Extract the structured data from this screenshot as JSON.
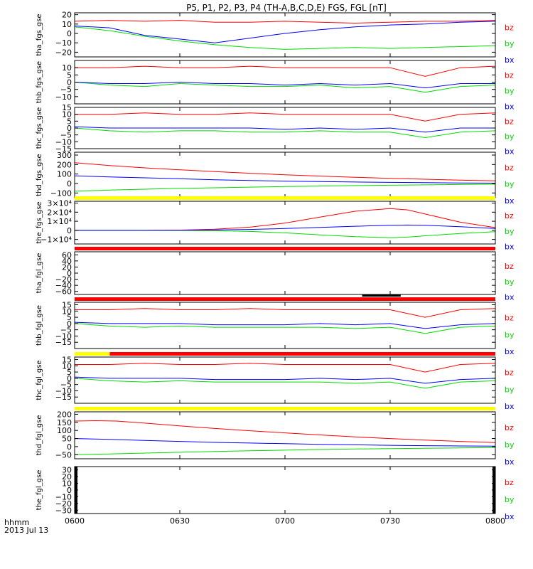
{
  "chart_data": {
    "type": "line",
    "title": "P5, P1, P2, P3, P4 (TH-A,B,C,D,E) FGS, FGL [nT]",
    "x_tick_labels": [
      "0600",
      "0630",
      "0700",
      "0730",
      "0800"
    ],
    "x_label_line1": "hhmm",
    "x_label_line2": "2013 Jul 13",
    "x_range": [
      "06:00",
      "08:00"
    ],
    "series_colors": {
      "bz": "#ff0000",
      "by": "#00dd00",
      "bx": "#0000ff"
    },
    "legend": [
      "bz",
      "by",
      "bx"
    ],
    "panels": [
      {
        "ylabel": "tha_fgs_gse",
        "ylim": [
          -25,
          22
        ],
        "yticks": [
          "20",
          "10",
          "0",
          "−10",
          "−20"
        ],
        "bar": null,
        "series": [
          {
            "name": "bz",
            "x": [
              0,
              10,
              20,
              30,
              40,
              50,
              60,
              70,
              80,
              90,
              100,
              110,
              120
            ],
            "y": [
              13,
              14,
              13,
              14,
              12,
              12,
              13,
              12,
              11,
              12,
              13,
              13,
              14
            ]
          },
          {
            "name": "by",
            "x": [
              0,
              10,
              20,
              30,
              40,
              50,
              60,
              70,
              80,
              90,
              100,
              110,
              120
            ],
            "y": [
              7,
              3,
              -3,
              -8,
              -12,
              -15,
              -17,
              -16,
              -15,
              -16,
              -15,
              -14,
              -13
            ]
          },
          {
            "name": "bx",
            "x": [
              0,
              10,
              20,
              30,
              40,
              50,
              60,
              70,
              80,
              90,
              100,
              110,
              120
            ],
            "y": [
              8,
              6,
              -2,
              -6,
              -10,
              -5,
              0,
              4,
              7,
              9,
              10,
              12,
              13
            ]
          }
        ]
      },
      {
        "ylabel": "thb_fgs_gse",
        "ylim": [
          -15,
          15
        ],
        "yticks": [
          "10",
          "5",
          "0",
          "−5",
          "−10"
        ],
        "bar": null,
        "series": [
          {
            "name": "bz",
            "x": [
              0,
              10,
              20,
              30,
              40,
              50,
              60,
              70,
              80,
              90,
              100,
              110,
              120
            ],
            "y": [
              10,
              10,
              11,
              10,
              10,
              11,
              10,
              10,
              10,
              10,
              4,
              10,
              11
            ]
          },
          {
            "name": "by",
            "x": [
              0,
              10,
              20,
              30,
              40,
              50,
              60,
              70,
              80,
              90,
              100,
              110,
              120
            ],
            "y": [
              0,
              -2,
              -3,
              -1,
              -2,
              -3,
              -3,
              -2,
              -4,
              -3,
              -7,
              -3,
              -2
            ]
          },
          {
            "name": "bx",
            "x": [
              0,
              10,
              20,
              30,
              40,
              50,
              60,
              70,
              80,
              90,
              100,
              110,
              120
            ],
            "y": [
              0,
              -1,
              -1,
              0,
              -1,
              -1,
              -2,
              -1,
              -2,
              -1,
              -4,
              -1,
              -1
            ]
          }
        ]
      },
      {
        "ylabel": "thc_fgs_gse",
        "ylim": [
          -15,
          15
        ],
        "yticks": [
          "15",
          "10",
          "5",
          "0",
          "−5",
          "−10",
          "−15"
        ],
        "bar": null,
        "series": [
          {
            "name": "bz",
            "x": [
              0,
              10,
              20,
              30,
              40,
              50,
              60,
              70,
              80,
              90,
              100,
              110,
              120
            ],
            "y": [
              10,
              10,
              11,
              10,
              10,
              11,
              10,
              10,
              10,
              10,
              5,
              10,
              11
            ]
          },
          {
            "name": "by",
            "x": [
              0,
              10,
              20,
              30,
              40,
              50,
              60,
              70,
              80,
              90,
              100,
              110,
              120
            ],
            "y": [
              0,
              -2,
              -3,
              -2,
              -2,
              -3,
              -3,
              -2,
              -3,
              -3,
              -7,
              -3,
              -2
            ]
          },
          {
            "name": "bx",
            "x": [
              0,
              10,
              20,
              30,
              40,
              50,
              60,
              70,
              80,
              90,
              100,
              110,
              120
            ],
            "y": [
              1,
              0,
              0,
              0,
              0,
              0,
              -1,
              0,
              -1,
              0,
              -3,
              0,
              0
            ]
          }
        ]
      },
      {
        "ylabel": "thd_fgs_gse",
        "ylim": [
          -150,
          330
        ],
        "yticks": [
          "300",
          "200",
          "100",
          "0",
          "−100"
        ],
        "bar": null,
        "series": [
          {
            "name": "bz",
            "x": [
              0,
              10,
              20,
              30,
              40,
              50,
              60,
              70,
              80,
              90,
              100,
              110,
              120
            ],
            "y": [
              220,
              190,
              165,
              145,
              125,
              108,
              92,
              78,
              66,
              55,
              45,
              35,
              28
            ]
          },
          {
            "name": "by",
            "x": [
              0,
              10,
              20,
              30,
              40,
              50,
              60,
              70,
              80,
              90,
              100,
              110,
              120
            ],
            "y": [
              -80,
              -70,
              -60,
              -52,
              -45,
              -38,
              -32,
              -27,
              -22,
              -18,
              -14,
              -10,
              -7
            ]
          },
          {
            "name": "bx",
            "x": [
              0,
              10,
              20,
              30,
              40,
              50,
              60,
              70,
              80,
              90,
              100,
              110,
              120
            ],
            "y": [
              80,
              70,
              60,
              50,
              40,
              32,
              25,
              20,
              16,
              12,
              9,
              6,
              4
            ]
          }
        ]
      },
      {
        "ylabel": "the_fgs_gse",
        "ylim": [
          -15000,
          32000
        ],
        "ytick_values": [
          30000,
          20000,
          10000,
          0,
          -10000
        ],
        "yticks": [
          "3×10⁴",
          "2×10⁴",
          "1×10⁴",
          "0",
          "−1×10⁴"
        ],
        "bar": {
          "color": "#ffff00",
          "segments": [
            [
              0,
              120
            ]
          ]
        },
        "series": [
          {
            "name": "bz",
            "x": [
              0,
              10,
              20,
              30,
              40,
              50,
              60,
              70,
              80,
              90,
              95,
              100,
              110,
              120
            ],
            "y": [
              0,
              0,
              0,
              300,
              1200,
              3500,
              8000,
              14500,
              21000,
              24000,
              22500,
              18000,
              9000,
              3000
            ]
          },
          {
            "name": "by",
            "x": [
              0,
              10,
              20,
              30,
              40,
              50,
              60,
              70,
              80,
              90,
              95,
              100,
              110,
              120
            ],
            "y": [
              0,
              0,
              0,
              -100,
              -400,
              -1200,
              -2800,
              -5000,
              -7000,
              -8000,
              -7500,
              -6000,
              -3500,
              -1500
            ]
          },
          {
            "name": "bx",
            "x": [
              0,
              10,
              20,
              30,
              40,
              50,
              60,
              70,
              80,
              90,
              95,
              100,
              110,
              120
            ],
            "y": [
              0,
              0,
              0,
              100,
              400,
              1000,
              2000,
              3200,
              4500,
              5500,
              5800,
              5500,
              4000,
              2000
            ]
          }
        ]
      },
      {
        "ylabel": "tha_fgl_gse",
        "ylim": [
          -70,
          70
        ],
        "yticks": [
          "60",
          "40",
          "20",
          "0",
          "−20",
          "−40",
          "−60"
        ],
        "bar": {
          "color": "#ff0000",
          "segments": [
            [
              0,
              120
            ]
          ]
        },
        "series": []
      },
      {
        "ylabel": "thb_fgl_gse",
        "ylim": [
          -20,
          17
        ],
        "yticks": [
          "15",
          "10",
          "5",
          "0",
          "−5",
          "−10",
          "−15"
        ],
        "bar": {
          "color": "#ff0000",
          "segments": [
            [
              0,
              120
            ]
          ],
          "black_segments": [
            [
              82,
              93
            ]
          ]
        },
        "series": [
          {
            "name": "bz",
            "x": [
              0,
              10,
              20,
              30,
              40,
              50,
              60,
              70,
              80,
              90,
              100,
              110,
              120
            ],
            "y": [
              11,
              11,
              12,
              11,
              11,
              12,
              11,
              11,
              11,
              11,
              5,
              11,
              12
            ]
          },
          {
            "name": "by",
            "x": [
              0,
              10,
              20,
              30,
              40,
              50,
              60,
              70,
              80,
              90,
              100,
              110,
              120
            ],
            "y": [
              0,
              -2,
              -3,
              -2,
              -3,
              -3,
              -3,
              -3,
              -4,
              -3,
              -8,
              -3,
              -2
            ]
          },
          {
            "name": "bx",
            "x": [
              0,
              10,
              20,
              30,
              40,
              50,
              60,
              70,
              80,
              90,
              100,
              110,
              120
            ],
            "y": [
              1,
              0,
              0,
              0,
              -1,
              -1,
              -1,
              0,
              -1,
              0,
              -4,
              -1,
              0
            ]
          }
        ]
      },
      {
        "ylabel": "thc_fgl_gse",
        "ylim": [
          -20,
          17
        ],
        "yticks": [
          "15",
          "10",
          "5",
          "0",
          "−5",
          "−10",
          "−15"
        ],
        "bar": {
          "color": "#ff0000",
          "segments": [
            [
              10,
              120
            ]
          ],
          "yellow_segments": [
            [
              0,
              10
            ]
          ]
        },
        "series": [
          {
            "name": "bz",
            "x": [
              0,
              10,
              20,
              30,
              40,
              50,
              60,
              70,
              80,
              90,
              100,
              110,
              120
            ],
            "y": [
              11,
              11,
              12,
              11,
              11,
              12,
              11,
              11,
              11,
              11,
              5,
              11,
              12
            ]
          },
          {
            "name": "by",
            "x": [
              0,
              10,
              20,
              30,
              40,
              50,
              60,
              70,
              80,
              90,
              100,
              110,
              120
            ],
            "y": [
              0,
              -2,
              -3,
              -2,
              -3,
              -3,
              -3,
              -3,
              -4,
              -3,
              -8,
              -3,
              -2
            ]
          },
          {
            "name": "bx",
            "x": [
              0,
              10,
              20,
              30,
              40,
              50,
              60,
              70,
              80,
              90,
              100,
              110,
              120
            ],
            "y": [
              1,
              0,
              0,
              0,
              -1,
              -1,
              -1,
              0,
              -1,
              0,
              -4,
              -1,
              0
            ]
          }
        ]
      },
      {
        "ylabel": "thd_fgl_gse",
        "ylim": [
          -75,
          215
        ],
        "yticks": [
          "200",
          "150",
          "100",
          "50",
          "0",
          "−50"
        ],
        "bar": {
          "color": "#ffff00",
          "segments": [
            [
              0,
              120
            ]
          ]
        },
        "series": [
          {
            "name": "bz",
            "x": [
              0,
              6,
              12,
              20,
              30,
              40,
              50,
              60,
              70,
              80,
              90,
              100,
              110,
              120
            ],
            "y": [
              158,
              160,
              158,
              145,
              128,
              112,
              98,
              85,
              72,
              60,
              50,
              40,
              32,
              25
            ]
          },
          {
            "name": "by",
            "x": [
              0,
              10,
              20,
              30,
              40,
              50,
              60,
              70,
              80,
              90,
              100,
              110,
              120
            ],
            "y": [
              -50,
              -45,
              -40,
              -35,
              -30,
              -26,
              -22,
              -18,
              -15,
              -12,
              -10,
              -8,
              -6
            ]
          },
          {
            "name": "bx",
            "x": [
              0,
              10,
              20,
              30,
              40,
              50,
              60,
              70,
              80,
              90,
              100,
              110,
              120
            ],
            "y": [
              50,
              45,
              38,
              32,
              26,
              22,
              18,
              14,
              11,
              8,
              6,
              4,
              3
            ]
          }
        ]
      },
      {
        "ylabel": "the_fgl_gse",
        "ylim": [
          -35,
          35
        ],
        "yticks": [
          "30",
          "20",
          "10",
          "0",
          "−10",
          "−20",
          "−30"
        ],
        "bar": null,
        "edge_fill": "#000000",
        "series": []
      }
    ]
  }
}
